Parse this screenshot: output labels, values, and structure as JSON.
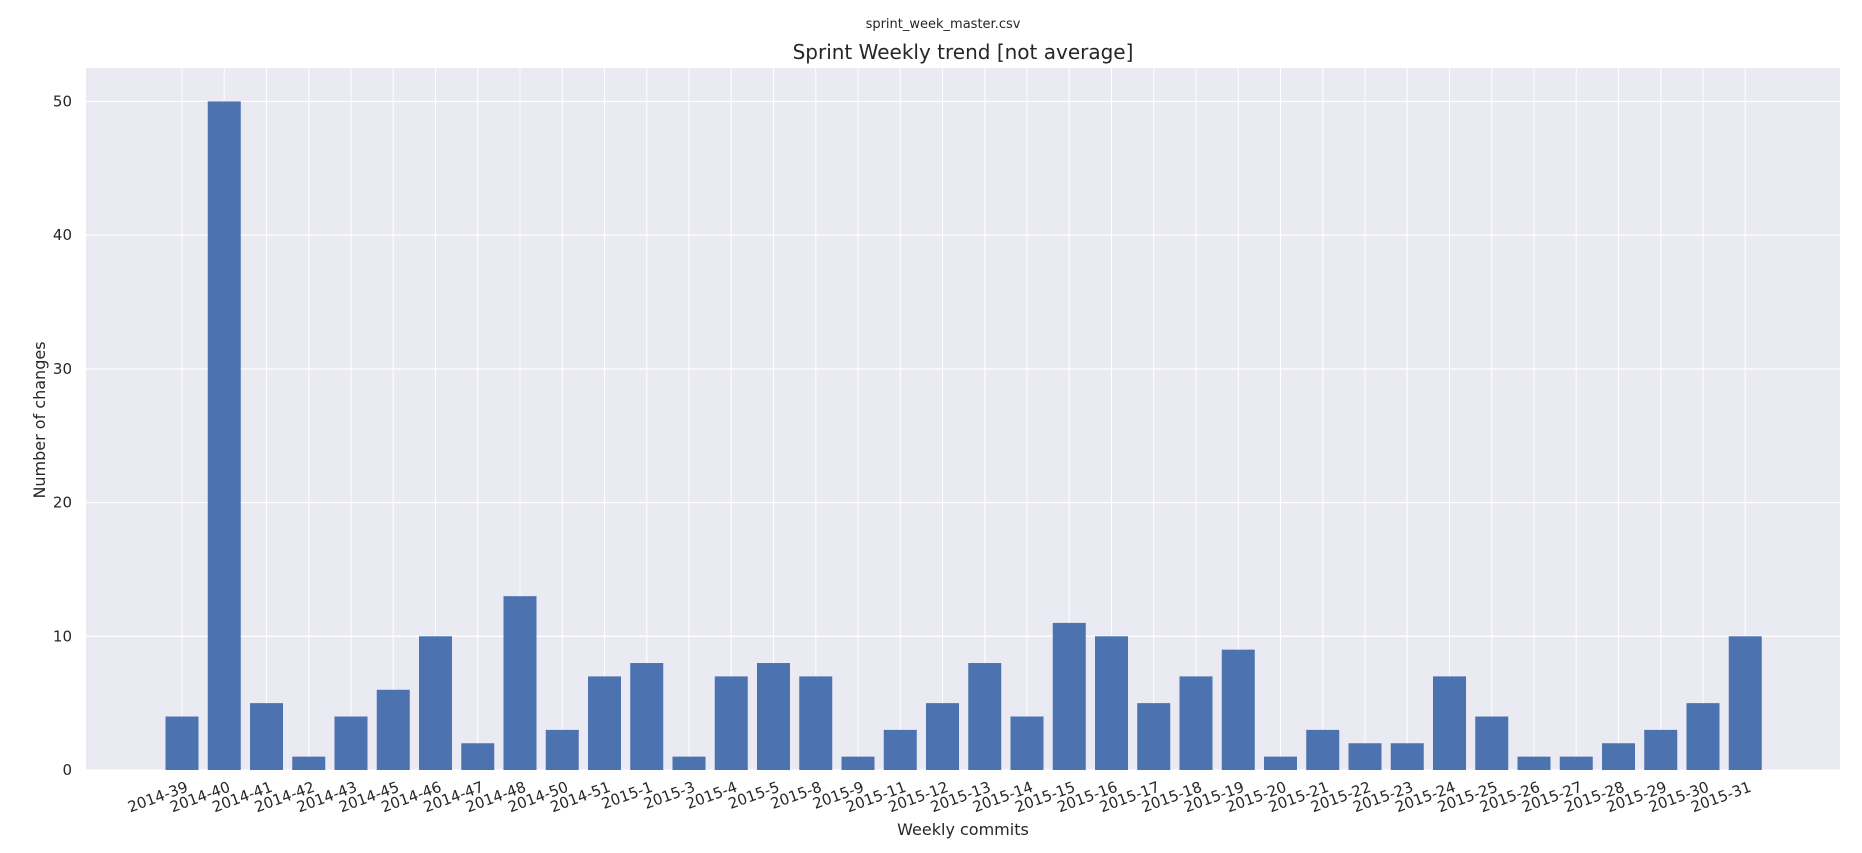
{
  "figure": {
    "suptitle": "sprint_week_master.csv"
  },
  "chart_data": {
    "type": "bar",
    "title": "Sprint Weekly trend [not average]",
    "xlabel": "Weekly commits",
    "ylabel": "Number of changes",
    "ylim": [
      0,
      52.5
    ],
    "yticks": [
      0,
      10,
      20,
      30,
      40,
      50
    ],
    "grid": true,
    "categories": [
      "2014-39",
      "2014-40",
      "2014-41",
      "2014-42",
      "2014-43",
      "2014-45",
      "2014-46",
      "2014-47",
      "2014-48",
      "2014-50",
      "2014-51",
      "2015-1",
      "2015-3",
      "2015-4",
      "2015-5",
      "2015-8",
      "2015-9",
      "2015-11",
      "2015-12",
      "2015-13",
      "2015-14",
      "2015-15",
      "2015-16",
      "2015-17",
      "2015-18",
      "2015-19",
      "2015-20",
      "2015-21",
      "2015-22",
      "2015-23",
      "2015-24",
      "2015-25",
      "2015-26",
      "2015-27",
      "2015-28",
      "2015-29",
      "2015-30",
      "2015-31"
    ],
    "values": [
      4,
      50,
      5,
      1,
      4,
      6,
      10,
      2,
      13,
      3,
      7,
      8,
      1,
      7,
      8,
      7,
      1,
      3,
      5,
      8,
      4,
      11,
      10,
      5,
      7,
      9,
      1,
      3,
      2,
      2,
      7,
      4,
      1,
      1,
      2,
      3,
      5,
      10
    ],
    "colors": {
      "bar": "#4c72b0",
      "background": "#eaeaf2",
      "grid": "#ffffff",
      "text": "#262626"
    }
  }
}
